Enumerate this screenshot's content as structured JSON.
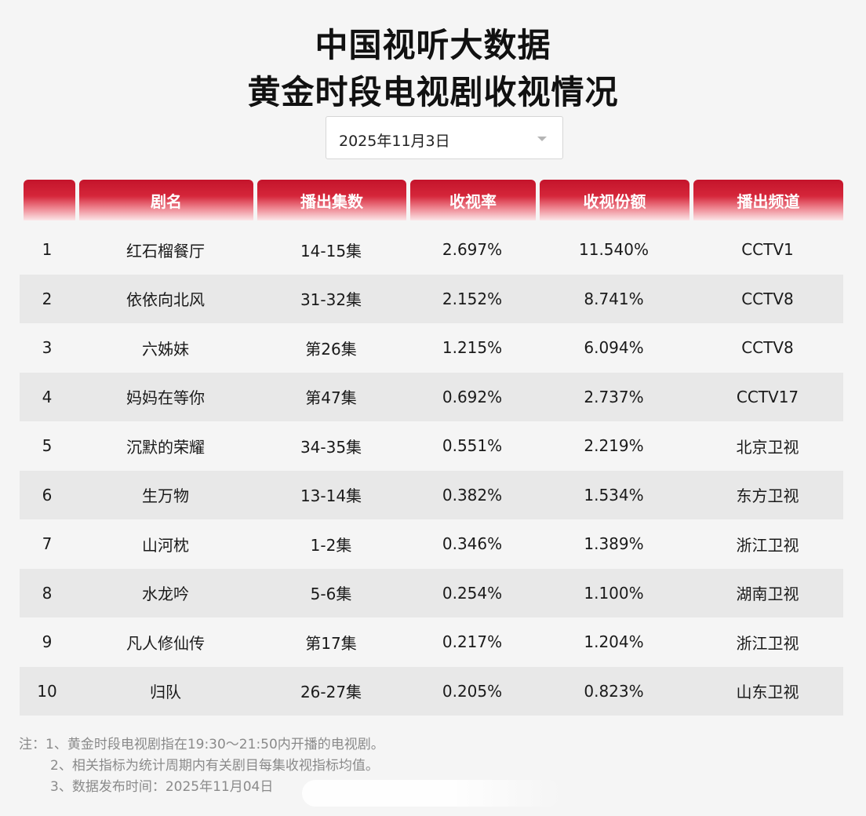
{
  "title": {
    "line1": "中国视听大数据",
    "line2": "黄金时段电视剧收视情况"
  },
  "date_select": {
    "value": "2025年11月3日",
    "icon": "chevron-down-icon"
  },
  "table": {
    "headers": [
      "",
      "剧名",
      "播出集数",
      "收视率",
      "收视份额",
      "播出频道"
    ],
    "rows": [
      [
        "1",
        "红石榴餐厅",
        "14-15集",
        "2.697%",
        "11.540%",
        "CCTV1"
      ],
      [
        "2",
        "依依向北风",
        "31-32集",
        "2.152%",
        "8.741%",
        "CCTV8"
      ],
      [
        "3",
        "六姊妹",
        "第26集",
        "1.215%",
        "6.094%",
        "CCTV8"
      ],
      [
        "4",
        "妈妈在等你",
        "第47集",
        "0.692%",
        "2.737%",
        "CCTV17"
      ],
      [
        "5",
        "沉默的荣耀",
        "34-35集",
        "0.551%",
        "2.219%",
        "北京卫视"
      ],
      [
        "6",
        "生万物",
        "13-14集",
        "0.382%",
        "1.534%",
        "东方卫视"
      ],
      [
        "7",
        "山河枕",
        "1-2集",
        "0.346%",
        "1.389%",
        "浙江卫视"
      ],
      [
        "8",
        "水龙吟",
        "5-6集",
        "0.254%",
        "1.100%",
        "湖南卫视"
      ],
      [
        "9",
        "凡人修仙传",
        "第17集",
        "0.217%",
        "1.204%",
        "浙江卫视"
      ],
      [
        "10",
        "归队",
        "26-27集",
        "0.205%",
        "0.823%",
        "山东卫视"
      ]
    ]
  },
  "notes": {
    "line1": "注：1、黄金时段电视剧指在19:30～21:50内开播的电视剧。",
    "line2": "2、相关指标为统计周期内有关剧目每集收视指标均值。",
    "line3": "3、数据发布时间：2025年11月04日"
  },
  "colors": {
    "header_red": "#c4142b",
    "row_alt": "#e8e8e8",
    "background": "#f5f5f5"
  }
}
